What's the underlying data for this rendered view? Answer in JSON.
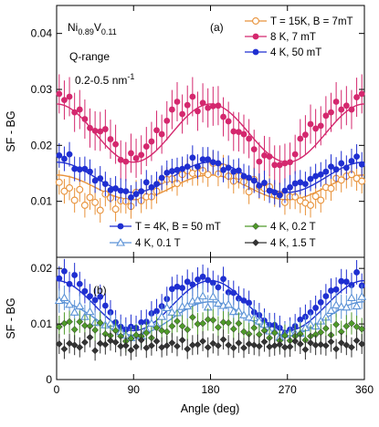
{
  "chart_data": [
    {
      "type": "scatter",
      "panel_label": "(a)",
      "ylabel": "SF - BG",
      "xlim": [
        0,
        360
      ],
      "ylim": [
        0,
        0.045
      ],
      "yticks": [
        0.01,
        0.02,
        0.03,
        0.04
      ],
      "ytick_labels": [
        "0.01",
        "0.02",
        "0.03",
        "0.04"
      ],
      "grid": false,
      "legend_position": "top-right",
      "annotations": {
        "sample_base": "Ni",
        "sample_sub1": "0.89",
        "sample_mid": "V",
        "sample_sub2": "0.11",
        "qrange_title": "Q-range",
        "qrange_value": "0.2-0.5 nm",
        "qrange_exp": "-1"
      },
      "series": [
        {
          "name": "T = 15K, B = 7mT",
          "color": "#e8923a",
          "marker": "circle-open",
          "fit": {
            "mean": 0.0125,
            "amplitude": 0.0022,
            "phase_deg": 0
          },
          "x": [
            3,
            9,
            15,
            21,
            27,
            33,
            39,
            45,
            51,
            57,
            63,
            69,
            75,
            81,
            87,
            93,
            99,
            105,
            111,
            117,
            123,
            129,
            135,
            141,
            147,
            153,
            159,
            165,
            171,
            177,
            183,
            189,
            195,
            201,
            207,
            213,
            219,
            225,
            231,
            237,
            243,
            249,
            255,
            261,
            267,
            273,
            279,
            285,
            291,
            297,
            303,
            309,
            315,
            321,
            327,
            333,
            339,
            345,
            351,
            357
          ],
          "y": [
            0.0134,
            0.0118,
            0.0124,
            0.0102,
            0.0121,
            0.0093,
            0.0107,
            0.0098,
            0.0084,
            0.0113,
            0.0106,
            0.0086,
            0.0101,
            0.01,
            0.0091,
            0.0116,
            0.0101,
            0.0108,
            0.0108,
            0.0118,
            0.0137,
            0.0139,
            0.014,
            0.0132,
            0.0148,
            0.0155,
            0.015,
            0.015,
            0.0155,
            0.0148,
            0.0168,
            0.0149,
            0.0161,
            0.0145,
            0.0136,
            0.0145,
            0.0135,
            0.0117,
            0.0139,
            0.0126,
            0.0123,
            0.0126,
            0.0112,
            0.0112,
            0.0098,
            0.0108,
            0.0108,
            0.0101,
            0.0097,
            0.0093,
            0.0109,
            0.0102,
            0.0125,
            0.0123,
            0.0141,
            0.0138,
            0.0145,
            0.0148,
            0.0141,
            0.0136
          ],
          "err": 0.0022
        },
        {
          "name": "8 K, 7 mT",
          "color": "#d4286e",
          "marker": "circle-filled",
          "fit": {
            "mean": 0.0222,
            "amplitude": 0.0052,
            "phase_deg": 0
          },
          "x": [
            3,
            9,
            15,
            21,
            27,
            33,
            39,
            45,
            51,
            57,
            63,
            69,
            75,
            81,
            87,
            93,
            99,
            105,
            111,
            117,
            123,
            129,
            135,
            141,
            147,
            153,
            159,
            165,
            171,
            177,
            183,
            189,
            195,
            201,
            207,
            213,
            219,
            225,
            231,
            237,
            243,
            249,
            255,
            261,
            267,
            273,
            279,
            285,
            291,
            297,
            303,
            309,
            315,
            321,
            327,
            333,
            339,
            345,
            351,
            357
          ],
          "y": [
            0.0292,
            0.0281,
            0.0287,
            0.0259,
            0.0264,
            0.0247,
            0.0231,
            0.0226,
            0.0225,
            0.0229,
            0.0211,
            0.0202,
            0.0174,
            0.0171,
            0.0186,
            0.0177,
            0.0183,
            0.0198,
            0.0207,
            0.0227,
            0.022,
            0.0244,
            0.0264,
            0.0278,
            0.0256,
            0.0272,
            0.0287,
            0.0261,
            0.0276,
            0.0267,
            0.027,
            0.0271,
            0.0251,
            0.0243,
            0.0225,
            0.0224,
            0.022,
            0.0212,
            0.0193,
            0.0171,
            0.0182,
            0.018,
            0.0165,
            0.0165,
            0.0168,
            0.017,
            0.0184,
            0.0212,
            0.0219,
            0.0238,
            0.023,
            0.0235,
            0.0253,
            0.0259,
            0.0278,
            0.0264,
            0.0271,
            0.0264,
            0.0286,
            0.0292
          ],
          "err": 0.0035
        },
        {
          "name": "4 K, 50 mT",
          "color": "#1f2fd1",
          "marker": "circle-filled",
          "fit": {
            "mean": 0.0143,
            "amplitude": 0.0027,
            "phase_deg": 0
          },
          "x": [
            3,
            9,
            15,
            21,
            27,
            33,
            39,
            45,
            51,
            57,
            63,
            69,
            75,
            81,
            87,
            93,
            99,
            105,
            111,
            117,
            123,
            129,
            135,
            141,
            147,
            153,
            159,
            165,
            171,
            177,
            183,
            189,
            195,
            201,
            207,
            213,
            219,
            225,
            231,
            237,
            243,
            249,
            255,
            261,
            267,
            273,
            279,
            285,
            291,
            297,
            303,
            309,
            315,
            321,
            327,
            333,
            339,
            345,
            351,
            357
          ],
          "y": [
            0.0182,
            0.0176,
            0.0184,
            0.0158,
            0.0157,
            0.0158,
            0.0153,
            0.0137,
            0.0141,
            0.0131,
            0.012,
            0.0123,
            0.0119,
            0.0118,
            0.0107,
            0.0113,
            0.0118,
            0.0134,
            0.0125,
            0.0131,
            0.0142,
            0.0151,
            0.0154,
            0.0156,
            0.0158,
            0.0162,
            0.0178,
            0.0162,
            0.0175,
            0.0175,
            0.017,
            0.0168,
            0.0156,
            0.016,
            0.0153,
            0.0155,
            0.0145,
            0.0142,
            0.0137,
            0.0128,
            0.0133,
            0.0119,
            0.0116,
            0.0111,
            0.0119,
            0.0125,
            0.0132,
            0.0134,
            0.0131,
            0.014,
            0.0145,
            0.0148,
            0.0153,
            0.0162,
            0.0157,
            0.0168,
            0.016,
            0.0172,
            0.018,
            0.0166
          ],
          "err": 0.0022
        }
      ]
    },
    {
      "type": "scatter",
      "panel_label": "(b)",
      "xlabel": "Angle (deg)",
      "ylabel": "SF - BG",
      "xlim": [
        0,
        360
      ],
      "ylim": [
        0,
        0.022
      ],
      "xticks": [
        0,
        90,
        180,
        270,
        360
      ],
      "xtick_labels": [
        "0",
        "90",
        "180",
        "270",
        "360"
      ],
      "yticks": [
        0,
        0.01,
        0.02
      ],
      "ytick_labels": [
        "0",
        "0.01",
        "0.02"
      ],
      "grid": false,
      "legend_position": "top",
      "series": [
        {
          "name": "T = 4K, B = 50 mT",
          "color": "#1f2fd1",
          "marker": "circle-filled",
          "fit": {
            "mean": 0.0133,
            "amplitude": 0.0045,
            "phase_deg": 0
          },
          "x": [
            3,
            9,
            15,
            21,
            27,
            33,
            39,
            45,
            51,
            57,
            63,
            69,
            75,
            81,
            87,
            93,
            99,
            105,
            111,
            117,
            123,
            129,
            135,
            141,
            147,
            153,
            159,
            165,
            171,
            177,
            183,
            189,
            195,
            201,
            207,
            213,
            219,
            225,
            231,
            237,
            243,
            249,
            255,
            261,
            267,
            273,
            279,
            285,
            291,
            297,
            303,
            309,
            315,
            321,
            327,
            333,
            339,
            345,
            351,
            357
          ],
          "y": [
            0.0182,
            0.0195,
            0.0172,
            0.0188,
            0.0172,
            0.0159,
            0.015,
            0.0143,
            0.0149,
            0.0133,
            0.0121,
            0.0103,
            0.0095,
            0.009,
            0.0095,
            0.0093,
            0.0103,
            0.0104,
            0.0119,
            0.0123,
            0.0132,
            0.0145,
            0.0163,
            0.0167,
            0.0165,
            0.0176,
            0.0171,
            0.018,
            0.0185,
            0.0179,
            0.0174,
            0.0166,
            0.0181,
            0.0157,
            0.0156,
            0.0146,
            0.0142,
            0.0138,
            0.0121,
            0.0116,
            0.0106,
            0.0098,
            0.0098,
            0.0093,
            0.0083,
            0.009,
            0.0096,
            0.0108,
            0.0113,
            0.0121,
            0.0129,
            0.0139,
            0.015,
            0.016,
            0.0162,
            0.0177,
            0.0176,
            0.017,
            0.0193,
            0.0169
          ],
          "err": 0.0022
        },
        {
          "name": "4 K, 0.1 T",
          "color": "#5b92d6",
          "marker": "triangle-open",
          "fit": {
            "mean": 0.011,
            "amplitude": 0.003,
            "phase_deg": 0
          },
          "x": [
            3,
            9,
            15,
            21,
            27,
            33,
            39,
            45,
            51,
            57,
            63,
            69,
            75,
            81,
            87,
            93,
            99,
            105,
            111,
            117,
            123,
            129,
            135,
            141,
            147,
            153,
            159,
            165,
            171,
            177,
            183,
            189,
            195,
            201,
            207,
            213,
            219,
            225,
            231,
            237,
            243,
            249,
            255,
            261,
            267,
            273,
            279,
            285,
            291,
            297,
            303,
            309,
            315,
            321,
            327,
            333,
            339,
            345,
            351,
            357
          ],
          "y": [
            0.0142,
            0.0147,
            0.0135,
            0.0121,
            0.0132,
            0.0113,
            0.0122,
            0.0103,
            0.0102,
            0.0098,
            0.0101,
            0.0094,
            0.0086,
            0.008,
            0.0075,
            0.008,
            0.0078,
            0.0089,
            0.0101,
            0.0098,
            0.0113,
            0.0129,
            0.0121,
            0.012,
            0.0131,
            0.0132,
            0.0141,
            0.0143,
            0.015,
            0.013,
            0.0149,
            0.0137,
            0.0133,
            0.0135,
            0.0122,
            0.0123,
            0.0116,
            0.0112,
            0.0111,
            0.0105,
            0.0099,
            0.0087,
            0.0087,
            0.0076,
            0.0081,
            0.0084,
            0.0083,
            0.0083,
            0.0093,
            0.0099,
            0.0096,
            0.0105,
            0.0112,
            0.0124,
            0.0134,
            0.0131,
            0.013,
            0.0147,
            0.0132,
            0.0149
          ],
          "err": 0.0022
        },
        {
          "name": "4 K, 0.2 T",
          "color": "#4f9a2a",
          "marker": "diamond-filled",
          "fit": null,
          "x": [
            3,
            9,
            15,
            21,
            27,
            33,
            39,
            45,
            51,
            57,
            63,
            69,
            75,
            81,
            87,
            93,
            99,
            105,
            111,
            117,
            123,
            129,
            135,
            141,
            147,
            153,
            159,
            165,
            171,
            177,
            183,
            189,
            195,
            201,
            207,
            213,
            219,
            225,
            231,
            237,
            243,
            249,
            255,
            261,
            267,
            273,
            279,
            285,
            291,
            297,
            303,
            309,
            315,
            321,
            327,
            333,
            339,
            345,
            351,
            357
          ],
          "y": [
            0.0095,
            0.0101,
            0.0104,
            0.009,
            0.0104,
            0.0097,
            0.0096,
            0.0089,
            0.0102,
            0.0082,
            0.0079,
            0.0088,
            0.0078,
            0.0069,
            0.0074,
            0.008,
            0.0078,
            0.0084,
            0.0075,
            0.0093,
            0.0088,
            0.0086,
            0.0096,
            0.0105,
            0.0096,
            0.009,
            0.0112,
            0.01,
            0.0101,
            0.0108,
            0.0107,
            0.0094,
            0.0103,
            0.0102,
            0.0091,
            0.0101,
            0.0086,
            0.0082,
            0.0093,
            0.0081,
            0.0088,
            0.0075,
            0.0084,
            0.007,
            0.0079,
            0.007,
            0.0078,
            0.0082,
            0.0071,
            0.0078,
            0.0081,
            0.0085,
            0.0092,
            0.008,
            0.0099,
            0.0086,
            0.0096,
            0.0101,
            0.0095,
            0.0091
          ],
          "err": 0.002
        },
        {
          "name": "4 K, 1.5 T",
          "color": "#333333",
          "marker": "diamond-filled",
          "fit": null,
          "x": [
            3,
            9,
            15,
            21,
            27,
            33,
            39,
            45,
            51,
            57,
            63,
            69,
            75,
            81,
            87,
            93,
            99,
            105,
            111,
            117,
            123,
            129,
            135,
            141,
            147,
            153,
            159,
            165,
            171,
            177,
            183,
            189,
            195,
            201,
            207,
            213,
            219,
            225,
            231,
            237,
            243,
            249,
            255,
            261,
            267,
            273,
            279,
            285,
            291,
            297,
            303,
            309,
            315,
            321,
            327,
            333,
            339,
            345,
            351,
            357
          ],
          "y": [
            0.0064,
            0.0055,
            0.0065,
            0.0062,
            0.0058,
            0.0067,
            0.0076,
            0.0052,
            0.0065,
            0.0063,
            0.007,
            0.0067,
            0.006,
            0.0061,
            0.0053,
            0.0059,
            0.0071,
            0.0057,
            0.0061,
            0.0069,
            0.0058,
            0.0061,
            0.0066,
            0.006,
            0.0071,
            0.0055,
            0.0062,
            0.0063,
            0.0069,
            0.0058,
            0.0065,
            0.0061,
            0.0072,
            0.0062,
            0.0057,
            0.0066,
            0.0057,
            0.0064,
            0.0062,
            0.006,
            0.0068,
            0.0059,
            0.0061,
            0.0063,
            0.0058,
            0.0059,
            0.0069,
            0.0064,
            0.0054,
            0.0066,
            0.0062,
            0.0063,
            0.0061,
            0.0068,
            0.0055,
            0.0066,
            0.0062,
            0.0058,
            0.007,
            0.0064
          ],
          "err": 0.0018
        }
      ]
    }
  ]
}
